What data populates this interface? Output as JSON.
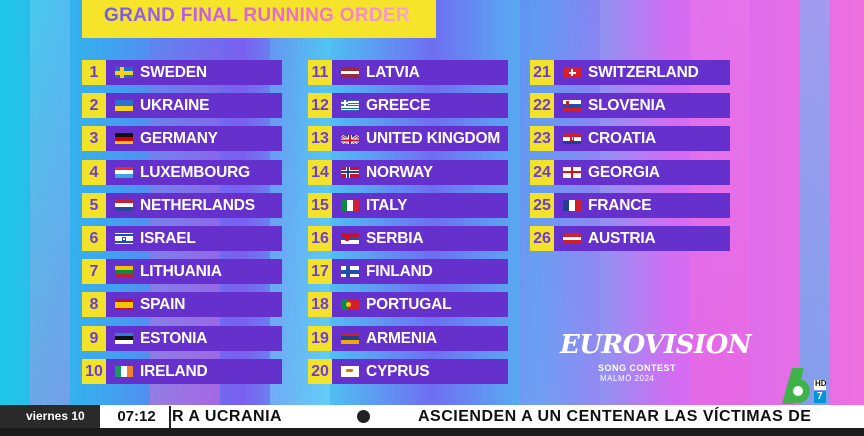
{
  "header": {
    "title": "GRAND FINAL RUNNING ORDER"
  },
  "entries": [
    {
      "num": "1",
      "country": "SWEDEN",
      "flag": "sweden"
    },
    {
      "num": "2",
      "country": "UKRAINE",
      "flag": "ukraine"
    },
    {
      "num": "3",
      "country": "GERMANY",
      "flag": "germany"
    },
    {
      "num": "4",
      "country": "LUXEMBOURG",
      "flag": "luxembourg"
    },
    {
      "num": "5",
      "country": "NETHERLANDS",
      "flag": "netherlands"
    },
    {
      "num": "6",
      "country": "ISRAEL",
      "flag": "israel"
    },
    {
      "num": "7",
      "country": "LITHUANIA",
      "flag": "lithuania"
    },
    {
      "num": "8",
      "country": "SPAIN",
      "flag": "spain"
    },
    {
      "num": "9",
      "country": "ESTONIA",
      "flag": "estonia"
    },
    {
      "num": "10",
      "country": "IRELAND",
      "flag": "ireland"
    },
    {
      "num": "11",
      "country": "LATVIA",
      "flag": "latvia"
    },
    {
      "num": "12",
      "country": "GREECE",
      "flag": "greece"
    },
    {
      "num": "13",
      "country": "UNITED KINGDOM",
      "flag": "uk"
    },
    {
      "num": "14",
      "country": "NORWAY",
      "flag": "norway"
    },
    {
      "num": "15",
      "country": "ITALY",
      "flag": "italy"
    },
    {
      "num": "16",
      "country": "SERBIA",
      "flag": "serbia"
    },
    {
      "num": "17",
      "country": "FINLAND",
      "flag": "finland"
    },
    {
      "num": "18",
      "country": "PORTUGAL",
      "flag": "portugal"
    },
    {
      "num": "19",
      "country": "ARMENIA",
      "flag": "armenia"
    },
    {
      "num": "20",
      "country": "CYPRUS",
      "flag": "cyprus"
    },
    {
      "num": "21",
      "country": "SWITZERLAND",
      "flag": "switzerland"
    },
    {
      "num": "22",
      "country": "SLOVENIA",
      "flag": "slovenia"
    },
    {
      "num": "23",
      "country": "CROATIA",
      "flag": "croatia"
    },
    {
      "num": "24",
      "country": "GEORGIA",
      "flag": "georgia"
    },
    {
      "num": "25",
      "country": "FRANCE",
      "flag": "france"
    },
    {
      "num": "26",
      "country": "AUSTRIA",
      "flag": "austria"
    }
  ],
  "logo": {
    "main": "EUROVISION",
    "sub": "SONG CONTEST",
    "city": "MALMÖ 2024"
  },
  "channel": {
    "number": "6",
    "hd": "HD",
    "sub": "7"
  },
  "ticker": {
    "day": "viernes 10",
    "time": "07:12",
    "headline1": "R A UCRANIA",
    "headline2": "ASCIENDEN A UN CENTENAR LAS VÍCTIMAS DE"
  },
  "colors": {
    "yellow": "#f3e22a",
    "purple_bar": "#6530cc",
    "number_text": "#6d3fd0"
  }
}
